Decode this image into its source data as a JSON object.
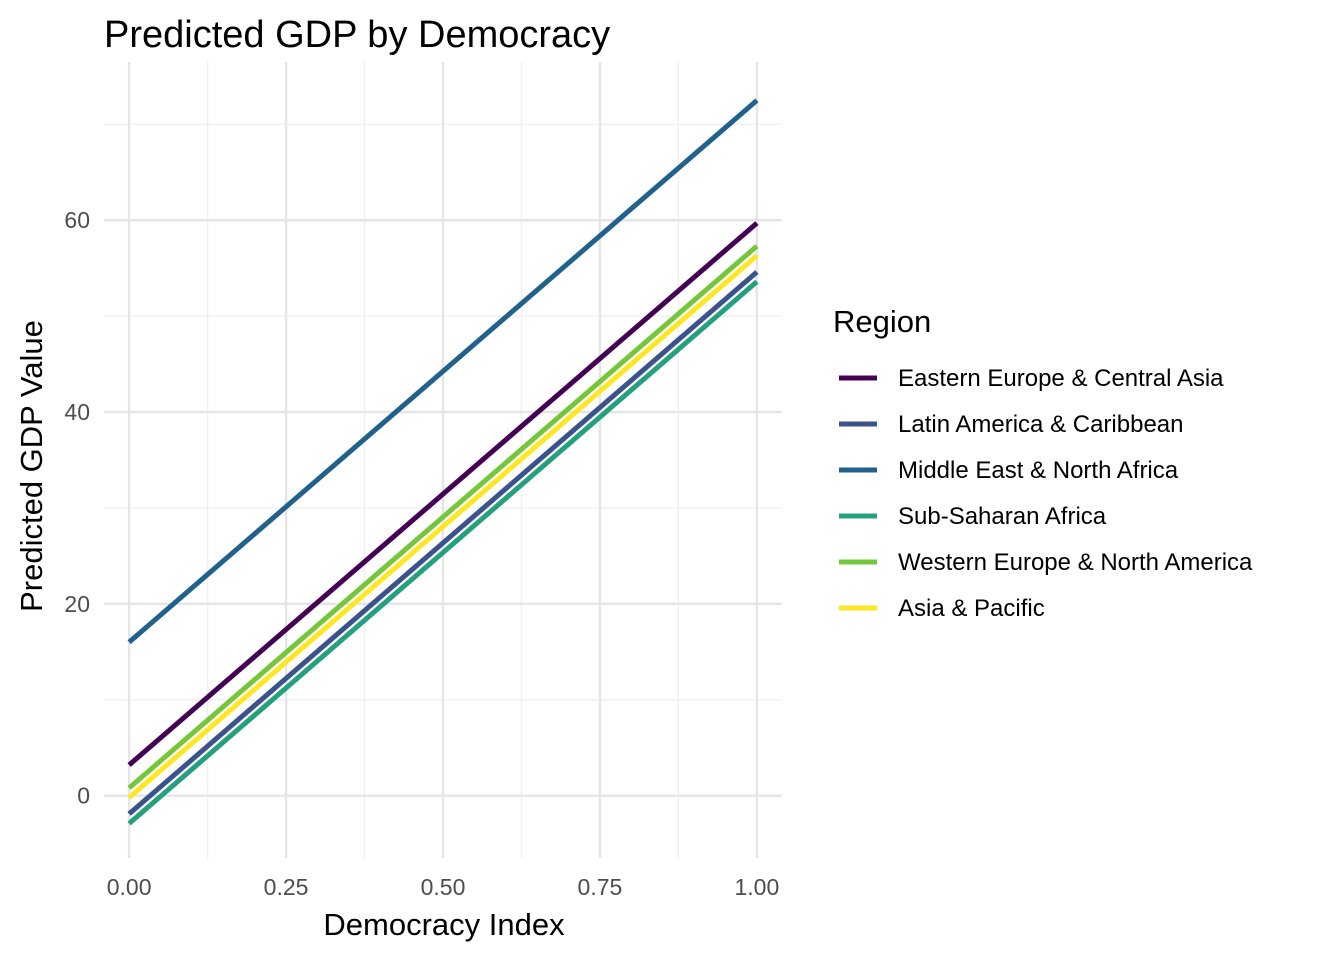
{
  "chart_data": {
    "type": "line",
    "title": "Predicted GDP by Democracy",
    "xlabel": "Democracy Index",
    "ylabel": "Predicted GDP Value",
    "xlim": [
      -0.04,
      1.04
    ],
    "ylim": [
      -6.5,
      76.5
    ],
    "x_ticks": [
      0,
      0.25,
      0.5,
      0.75,
      1
    ],
    "x_tick_labels": [
      "0.00",
      "0.25",
      "0.50",
      "0.75",
      "1.00"
    ],
    "y_ticks": [
      0,
      20,
      40,
      60
    ],
    "y_tick_labels": [
      "0",
      "20",
      "40",
      "60"
    ],
    "grid": true,
    "legend": {
      "title": "Region",
      "placement": "right"
    },
    "series": [
      {
        "name": "Eastern Europe & Central Asia",
        "color": "#440154",
        "x": [
          0,
          1
        ],
        "y": [
          3.2,
          59.7
        ]
      },
      {
        "name": "Latin America & Caribbean",
        "color": "#3b528b",
        "x": [
          0,
          1
        ],
        "y": [
          -1.9,
          54.6
        ]
      },
      {
        "name": "Middle East & North Africa",
        "color": "#21628c",
        "x": [
          0,
          1
        ],
        "y": [
          16.0,
          72.5
        ]
      },
      {
        "name": "Sub-Saharan Africa",
        "color": "#24a07f",
        "x": [
          0,
          1
        ],
        "y": [
          -2.9,
          53.6
        ]
      },
      {
        "name": "Western Europe & North America",
        "color": "#74c73b",
        "x": [
          0,
          1
        ],
        "y": [
          0.8,
          57.3
        ]
      },
      {
        "name": "Asia & Pacific",
        "color": "#fde725",
        "x": [
          0,
          1
        ],
        "y": [
          -0.2,
          56.3
        ]
      }
    ]
  }
}
